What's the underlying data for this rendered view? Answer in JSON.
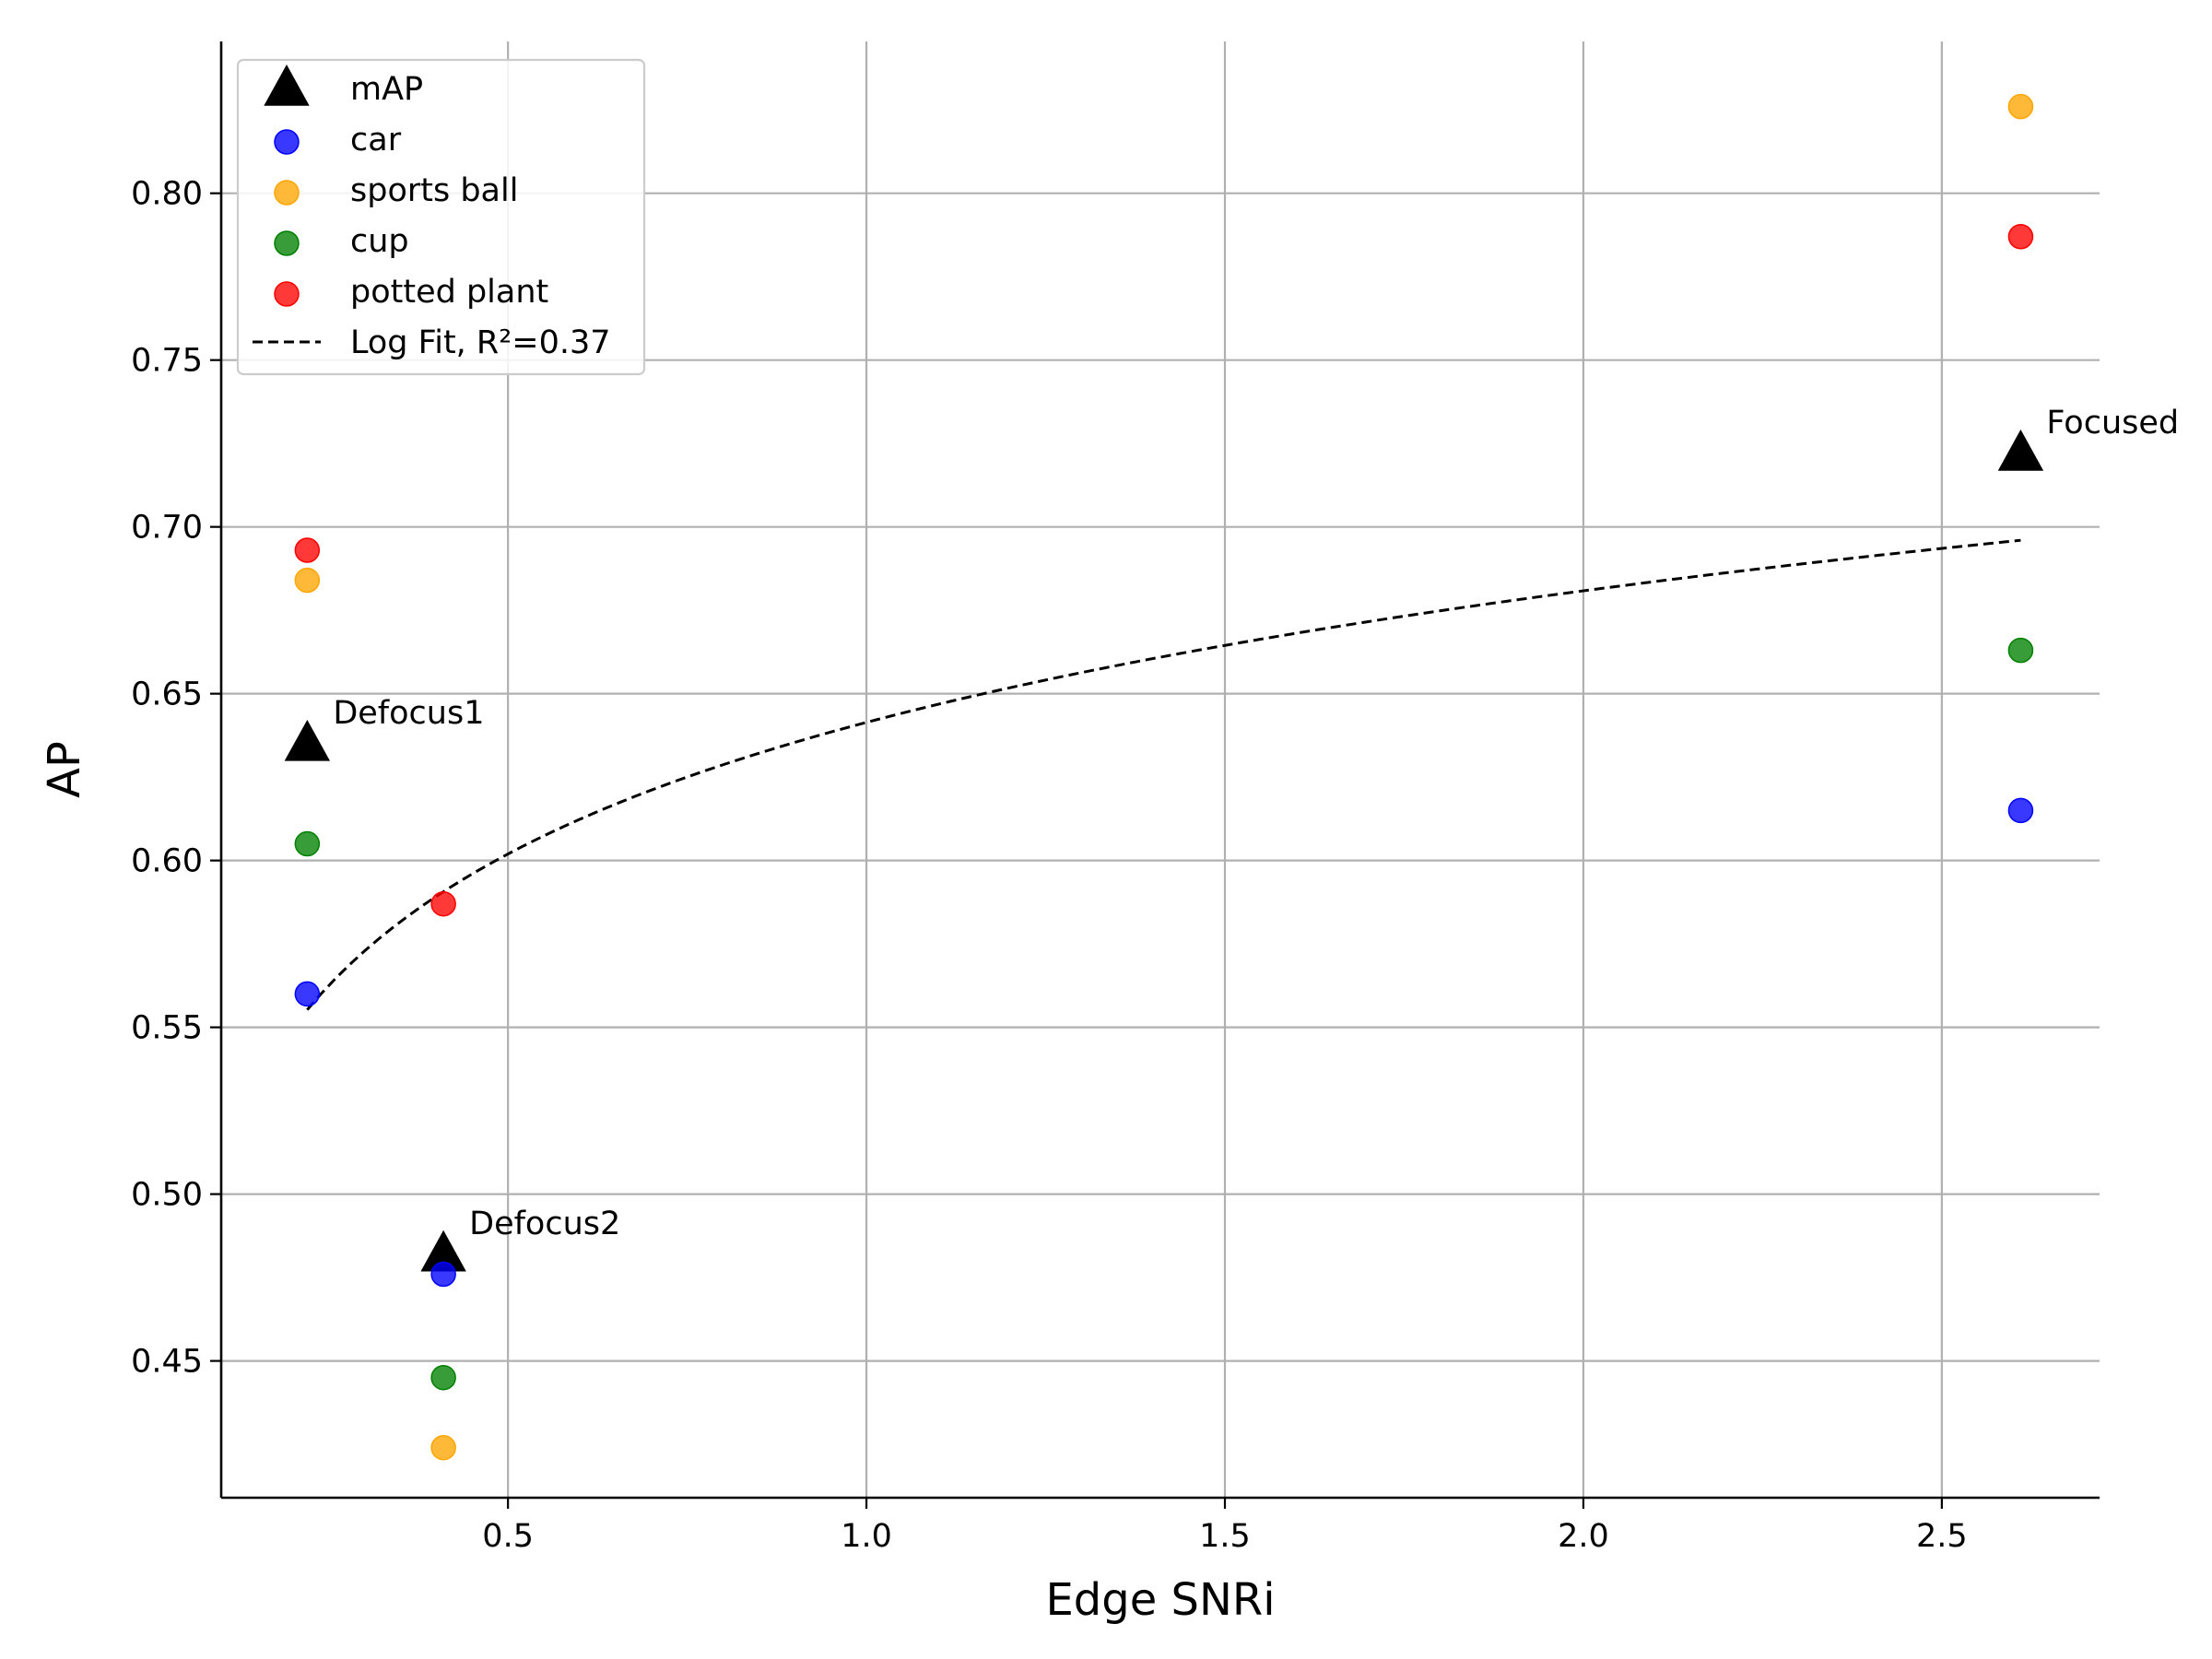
{
  "chart_data": {
    "type": "scatter",
    "xlabel": "Edge SNRi",
    "ylabel": "AP",
    "xlim": [
      0.1,
      2.72
    ],
    "ylim": [
      0.409,
      0.8455
    ],
    "x_ticks": [
      0.5,
      1.0,
      1.5,
      2.0,
      2.5
    ],
    "x_tick_labels": [
      "0.5",
      "1.0",
      "1.5",
      "2.0",
      "2.5"
    ],
    "y_ticks": [
      0.45,
      0.5,
      0.55,
      0.6,
      0.65,
      0.7,
      0.75,
      0.8
    ],
    "y_tick_labels": [
      "0.45",
      "0.50",
      "0.55",
      "0.60",
      "0.65",
      "0.70",
      "0.75",
      "0.80"
    ],
    "grid": true,
    "legend_position": "top-left",
    "series": [
      {
        "name": "mAP",
        "marker": "triangle",
        "color": "#000000",
        "x": [
          0.22,
          0.41,
          2.61
        ],
        "y": [
          0.635,
          0.482,
          0.722
        ]
      },
      {
        "name": "car",
        "marker": "circle",
        "color": "#0000ff",
        "x": [
          0.22,
          0.41,
          2.61
        ],
        "y": [
          0.56,
          0.476,
          0.615
        ]
      },
      {
        "name": "sports ball",
        "marker": "circle",
        "color": "#ffa500",
        "x": [
          0.22,
          0.41,
          2.61
        ],
        "y": [
          0.684,
          0.424,
          0.826
        ]
      },
      {
        "name": "cup",
        "marker": "circle",
        "color": "#008000",
        "x": [
          0.22,
          0.41,
          2.61
        ],
        "y": [
          0.605,
          0.445,
          0.663
        ]
      },
      {
        "name": "potted plant",
        "marker": "circle",
        "color": "#ff0000",
        "x": [
          0.22,
          0.41,
          2.61
        ],
        "y": [
          0.693,
          0.587,
          0.787
        ]
      }
    ],
    "fit": {
      "name": "Log Fit, R²=0.37",
      "type": "log",
      "a": 0.6414,
      "b": 0.0569,
      "x_range": [
        0.22,
        2.61
      ],
      "color": "#000000",
      "style": "dashed"
    },
    "annotations": [
      {
        "text": "Defocus1",
        "x": 0.22,
        "y": 0.635
      },
      {
        "text": "Defocus2",
        "x": 0.41,
        "y": 0.482
      },
      {
        "text": "Focused",
        "x": 2.61,
        "y": 0.722
      }
    ]
  }
}
